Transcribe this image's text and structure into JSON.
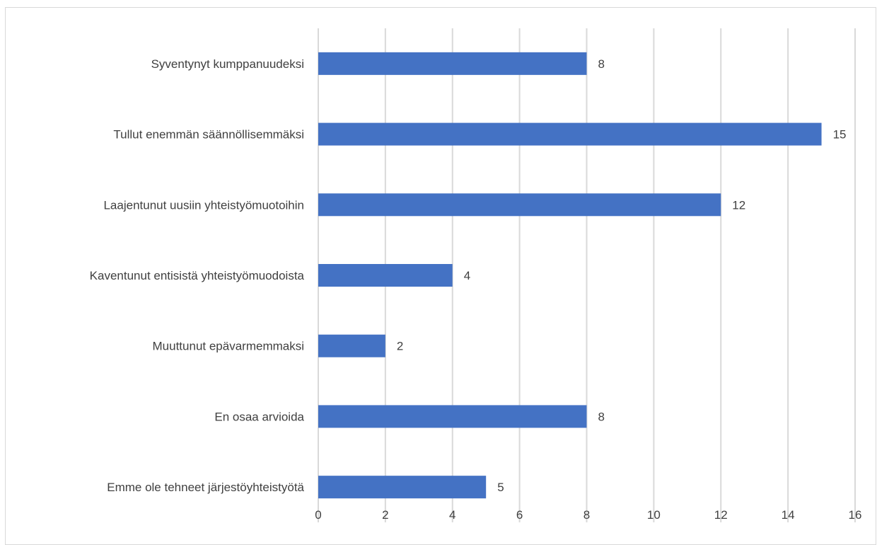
{
  "chart_data": {
    "type": "bar",
    "orientation": "horizontal",
    "title": "",
    "xlabel": "",
    "ylabel": "",
    "categories": [
      "Syventynyt kumppanuudeksi",
      "Tullut enemmän säännöllisemmäksi",
      "Laajentunut uusiin yhteistyömuotoihin",
      "Kaventunut entisistä yhteistyömuodoista",
      "Muuttunut epävarmemmaksi",
      "En osaa arvioida",
      "Emme ole tehneet järjestöyhteistyötä"
    ],
    "values": [
      8,
      15,
      12,
      4,
      2,
      8,
      5
    ],
    "xlim": [
      0,
      16
    ],
    "xticks": [
      0,
      2,
      4,
      6,
      8,
      10,
      12,
      14,
      16
    ],
    "grid": "vertical",
    "legend": "none",
    "bar_color": "#4472C4",
    "grid_color": "#d9d9d9",
    "text_color": "#404040"
  }
}
